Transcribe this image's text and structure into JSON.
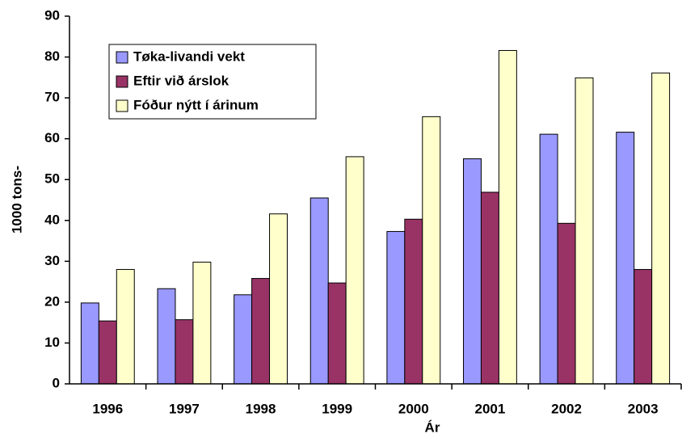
{
  "chart_data": {
    "type": "bar",
    "x_label": "Ár",
    "y_label": "1000 tons-",
    "categories": [
      "1996",
      "1997",
      "1998",
      "1999",
      "2000",
      "2001",
      "2002",
      "2003"
    ],
    "series": [
      {
        "name": "Tøka-livandi vekt",
        "color": "#9999ff",
        "values": [
          19.8,
          23.3,
          21.8,
          45.5,
          37.3,
          55.1,
          61.1,
          61.6
        ]
      },
      {
        "name": "Eftir við árslok",
        "color": "#993366",
        "values": [
          15.4,
          15.7,
          25.8,
          24.7,
          40.3,
          46.9,
          39.3,
          28.0
        ]
      },
      {
        "name": "Fóður nýtt í árinum",
        "color": "#ffffcc",
        "values": [
          28.0,
          29.8,
          41.6,
          55.6,
          65.4,
          81.6,
          74.9,
          76.1
        ]
      }
    ],
    "ylim": [
      0,
      90
    ],
    "yticks": [
      0,
      10,
      20,
      30,
      40,
      50,
      60,
      70,
      80,
      90
    ],
    "grid": false,
    "legend": "upper left"
  }
}
